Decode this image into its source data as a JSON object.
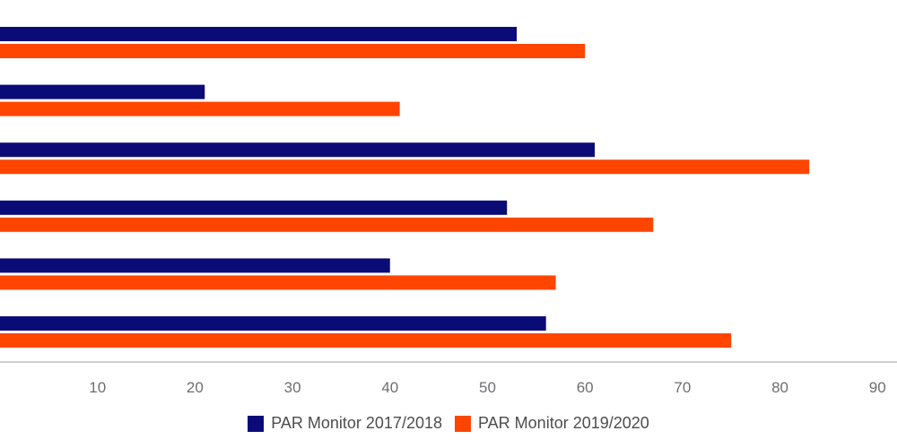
{
  "chart_data": {
    "type": "bar",
    "orientation": "horizontal",
    "categories": [
      "",
      "",
      "",
      "",
      "",
      ""
    ],
    "series": [
      {
        "name": "PAR Monitor 2017/2018",
        "color": "#0b0b78",
        "values": [
          53,
          21,
          61,
          52,
          40,
          56
        ]
      },
      {
        "name": "PAR Monitor 2019/2020",
        "color": "#ff4500",
        "values": [
          60,
          41,
          83,
          67,
          57,
          75
        ]
      }
    ],
    "xticks": [
      10,
      20,
      30,
      40,
      50,
      60,
      70,
      80,
      90
    ],
    "xlim": [
      0,
      92
    ],
    "grid": false,
    "legend_position": "bottom"
  }
}
